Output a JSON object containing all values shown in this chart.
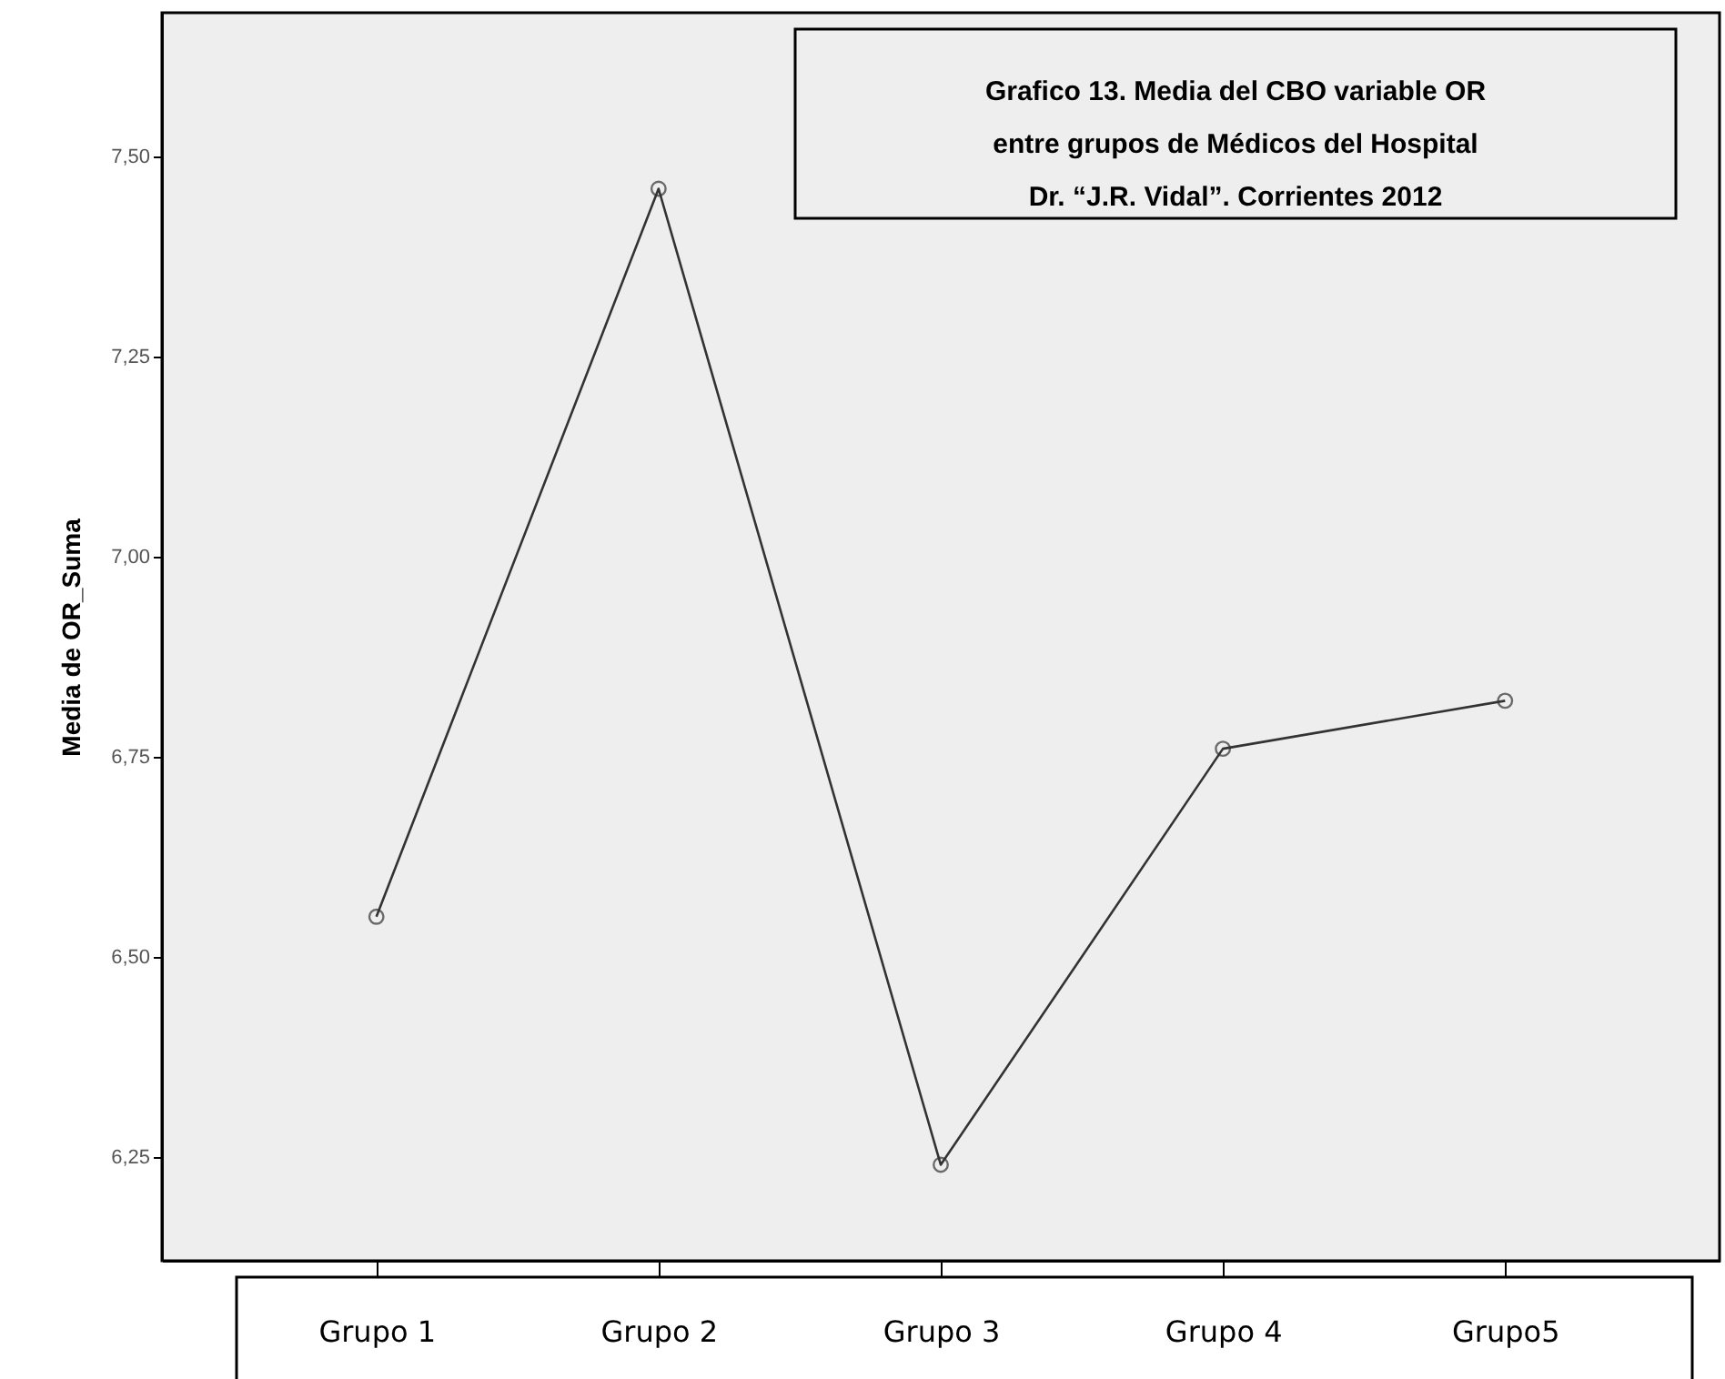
{
  "chart_data": {
    "type": "line",
    "title": "Grafico 13. Media del CBO variable OR\nentre grupos de Médicos del Hospital\nDr. “J.R. Vidal”. Corrientes 2012",
    "ylabel": "Media de OR_Suma",
    "categories": [
      "Grupo 1",
      "Grupo 2",
      "Grupo 3",
      "Grupo 4",
      "Grupo5"
    ],
    "series": [
      {
        "color": "#333333",
        "values": [
          6.55,
          7.46,
          6.24,
          6.76,
          6.82
        ]
      }
    ],
    "ylim": [
      6.12,
      7.68
    ],
    "yticks": [
      {
        "value": 6.25,
        "label": "6,25"
      },
      {
        "value": 6.5,
        "label": "6,50"
      },
      {
        "value": 6.75,
        "label": "6,75"
      },
      {
        "value": 7.0,
        "label": "7,00"
      },
      {
        "value": 7.25,
        "label": "7,25"
      },
      {
        "value": 7.5,
        "label": "7,50"
      }
    ],
    "marker": "circle",
    "line_style": "solid",
    "grid": false
  }
}
